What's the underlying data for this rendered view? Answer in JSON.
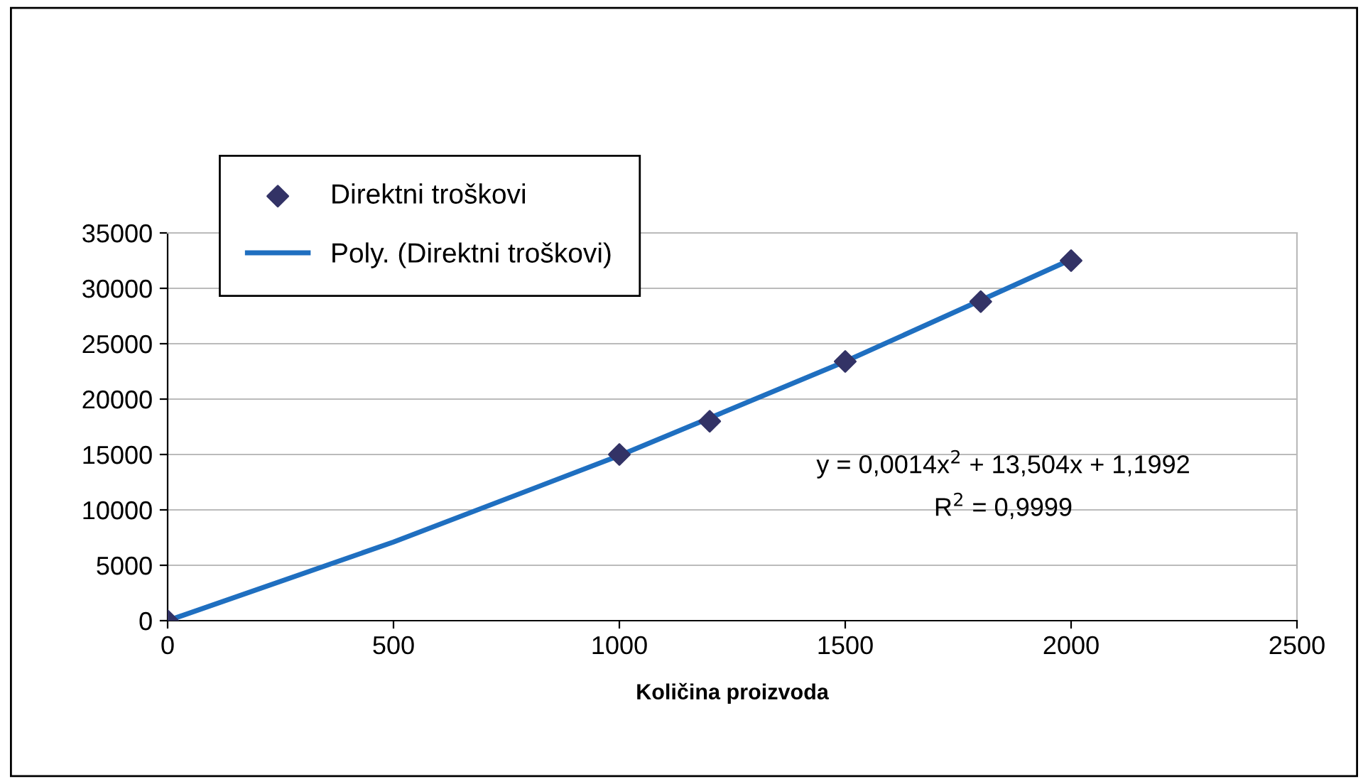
{
  "chart_data": {
    "type": "scatter",
    "xlabel": "Količina proizvoda",
    "series": [
      {
        "name": "Direktni troškovi",
        "color": "#333366",
        "marker": "diamond",
        "x": [
          0,
          1000,
          1200,
          1500,
          1800,
          2000
        ],
        "values": [
          0,
          15000,
          18000,
          23400,
          28800,
          32500
        ]
      },
      {
        "name": "Poly. (Direktni troškovi)",
        "type": "line",
        "color": "#1f6fc0",
        "marker": "none",
        "line_style": "solid",
        "x": [
          0,
          500,
          1000,
          1500,
          2000
        ],
        "values": [
          0,
          7100,
          14900,
          23400,
          32600
        ]
      }
    ],
    "xlim": [
      0,
      2500
    ],
    "xticks": [
      0,
      500,
      1000,
      1500,
      2000,
      2500
    ],
    "ylim": [
      0,
      35000
    ],
    "yticks": [
      0,
      5000,
      10000,
      15000,
      20000,
      25000,
      30000,
      35000
    ],
    "grid": "y",
    "legend": "top left",
    "annotations": [
      "y = 0,0014x$^{2}$ + 13,504x + 1,1992",
      "R$^{2}$ = 0,9999"
    ]
  }
}
